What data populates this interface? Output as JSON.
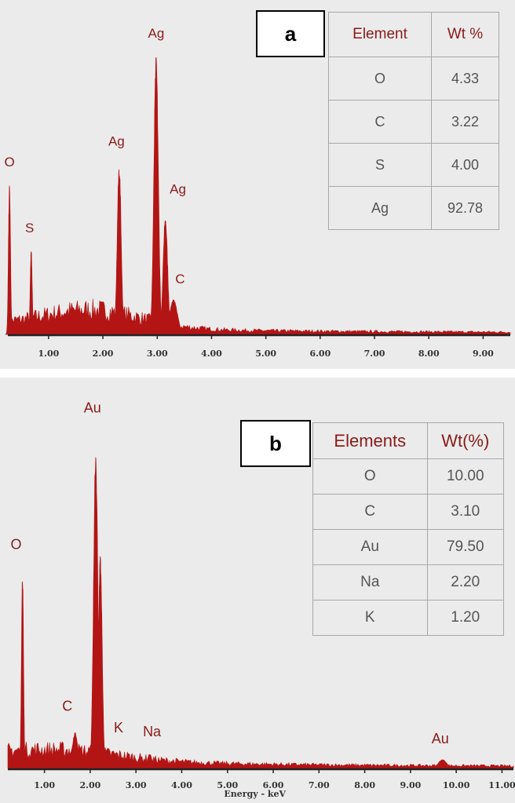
{
  "panels": [
    {
      "label": "a",
      "table": {
        "headers": [
          "Element",
          "Wt %"
        ],
        "rows": [
          [
            "O",
            "4.33"
          ],
          [
            "C",
            "3.22"
          ],
          [
            "S",
            "4.00"
          ],
          [
            "Ag",
            "92.78"
          ]
        ]
      }
    },
    {
      "label": "b",
      "table": {
        "headers": [
          "Elements",
          "Wt(%)"
        ],
        "rows": [
          [
            "O",
            "10.00"
          ],
          [
            "C",
            "3.10"
          ],
          [
            "Au",
            "79.50"
          ],
          [
            "Na",
            "2.20"
          ],
          [
            "K",
            "1.20"
          ]
        ]
      }
    }
  ],
  "colors": {
    "spectrum": "#b31515",
    "label": "#8b1a1a",
    "background": "#ebebeb"
  },
  "chart_data": [
    {
      "type": "area",
      "xlim": [
        0.25,
        9.5
      ],
      "ylim": [
        0,
        1
      ],
      "x_ticks": [
        1,
        2,
        3,
        4,
        5,
        6,
        7,
        8,
        9
      ],
      "tick_labels": [
        "1.00",
        "2.00",
        "3.00",
        "4.00",
        "5.00",
        "6.00",
        "7.00",
        "8.00",
        "9.00"
      ],
      "xlabel": "",
      "baseline_level": 0.025,
      "hump": {
        "center": 1.8,
        "width": 0.9,
        "height": 0.06
      },
      "peaks": [
        {
          "element": "O",
          "energy": 0.28,
          "height": 0.5,
          "width": 0.018
        },
        {
          "element": "S",
          "energy": 0.68,
          "height": 0.28,
          "width": 0.018
        },
        {
          "element": "Ag",
          "energy": 2.3,
          "height": 0.57,
          "width": 0.035
        },
        {
          "element": "Ag",
          "energy": 2.98,
          "height": 0.93,
          "width": 0.04
        },
        {
          "element": "Ag",
          "energy": 3.15,
          "height": 0.4,
          "width": 0.04
        },
        {
          "element": "C",
          "energy": 3.3,
          "height": 0.12,
          "width": 0.07
        }
      ],
      "annotations": [
        {
          "text": "O",
          "x": 0.28,
          "y": 0.56
        },
        {
          "text": "S",
          "x": 0.65,
          "y": 0.34
        },
        {
          "text": "Ag",
          "x": 2.25,
          "y": 0.63
        },
        {
          "text": "Ag",
          "x": 2.98,
          "y": 0.99
        },
        {
          "text": "Ag",
          "x": 3.38,
          "y": 0.47
        },
        {
          "text": "C",
          "x": 3.42,
          "y": 0.17
        }
      ]
    },
    {
      "type": "area",
      "xlim": [
        0.2,
        11.25
      ],
      "ylim": [
        0,
        1
      ],
      "x_ticks": [
        1,
        2,
        3,
        4,
        5,
        6,
        7,
        8,
        9,
        10,
        11
      ],
      "tick_labels": [
        "1.00",
        "2.00",
        "3.00",
        "4.00",
        "5.00",
        "6.00",
        "7.00",
        "8.00",
        "9.00",
        "10.00",
        "11.00"
      ],
      "xlabel": "Energy - keV",
      "baseline_level": 0.03,
      "hump": {
        "center": 1.5,
        "width": 1.2,
        "height": 0.025
      },
      "peaks": [
        {
          "element": "O",
          "energy": 0.52,
          "height": 0.55,
          "width": 0.022
        },
        {
          "element": "C",
          "energy": 1.67,
          "height": 0.1,
          "width": 0.06
        },
        {
          "element": "Au",
          "energy": 2.12,
          "height": 0.9,
          "width": 0.045
        },
        {
          "element": "Au",
          "energy": 2.22,
          "height": 0.6,
          "width": 0.04
        },
        {
          "element": "K",
          "energy": 2.58,
          "height": 0.04,
          "width": 0.05
        },
        {
          "element": "Na",
          "energy": 3.3,
          "height": 0.04,
          "width": 0.05
        },
        {
          "element": "Au",
          "energy": 9.7,
          "height": 0.025,
          "width": 0.09
        }
      ],
      "annotations": [
        {
          "text": "Au",
          "x": 2.05,
          "y": 0.99
        },
        {
          "text": "O",
          "x": 0.38,
          "y": 0.61
        },
        {
          "text": "C",
          "x": 1.5,
          "y": 0.16
        },
        {
          "text": "K",
          "x": 2.62,
          "y": 0.1
        },
        {
          "text": "Na",
          "x": 3.35,
          "y": 0.09
        },
        {
          "text": "Au",
          "x": 9.65,
          "y": 0.07
        }
      ]
    }
  ]
}
